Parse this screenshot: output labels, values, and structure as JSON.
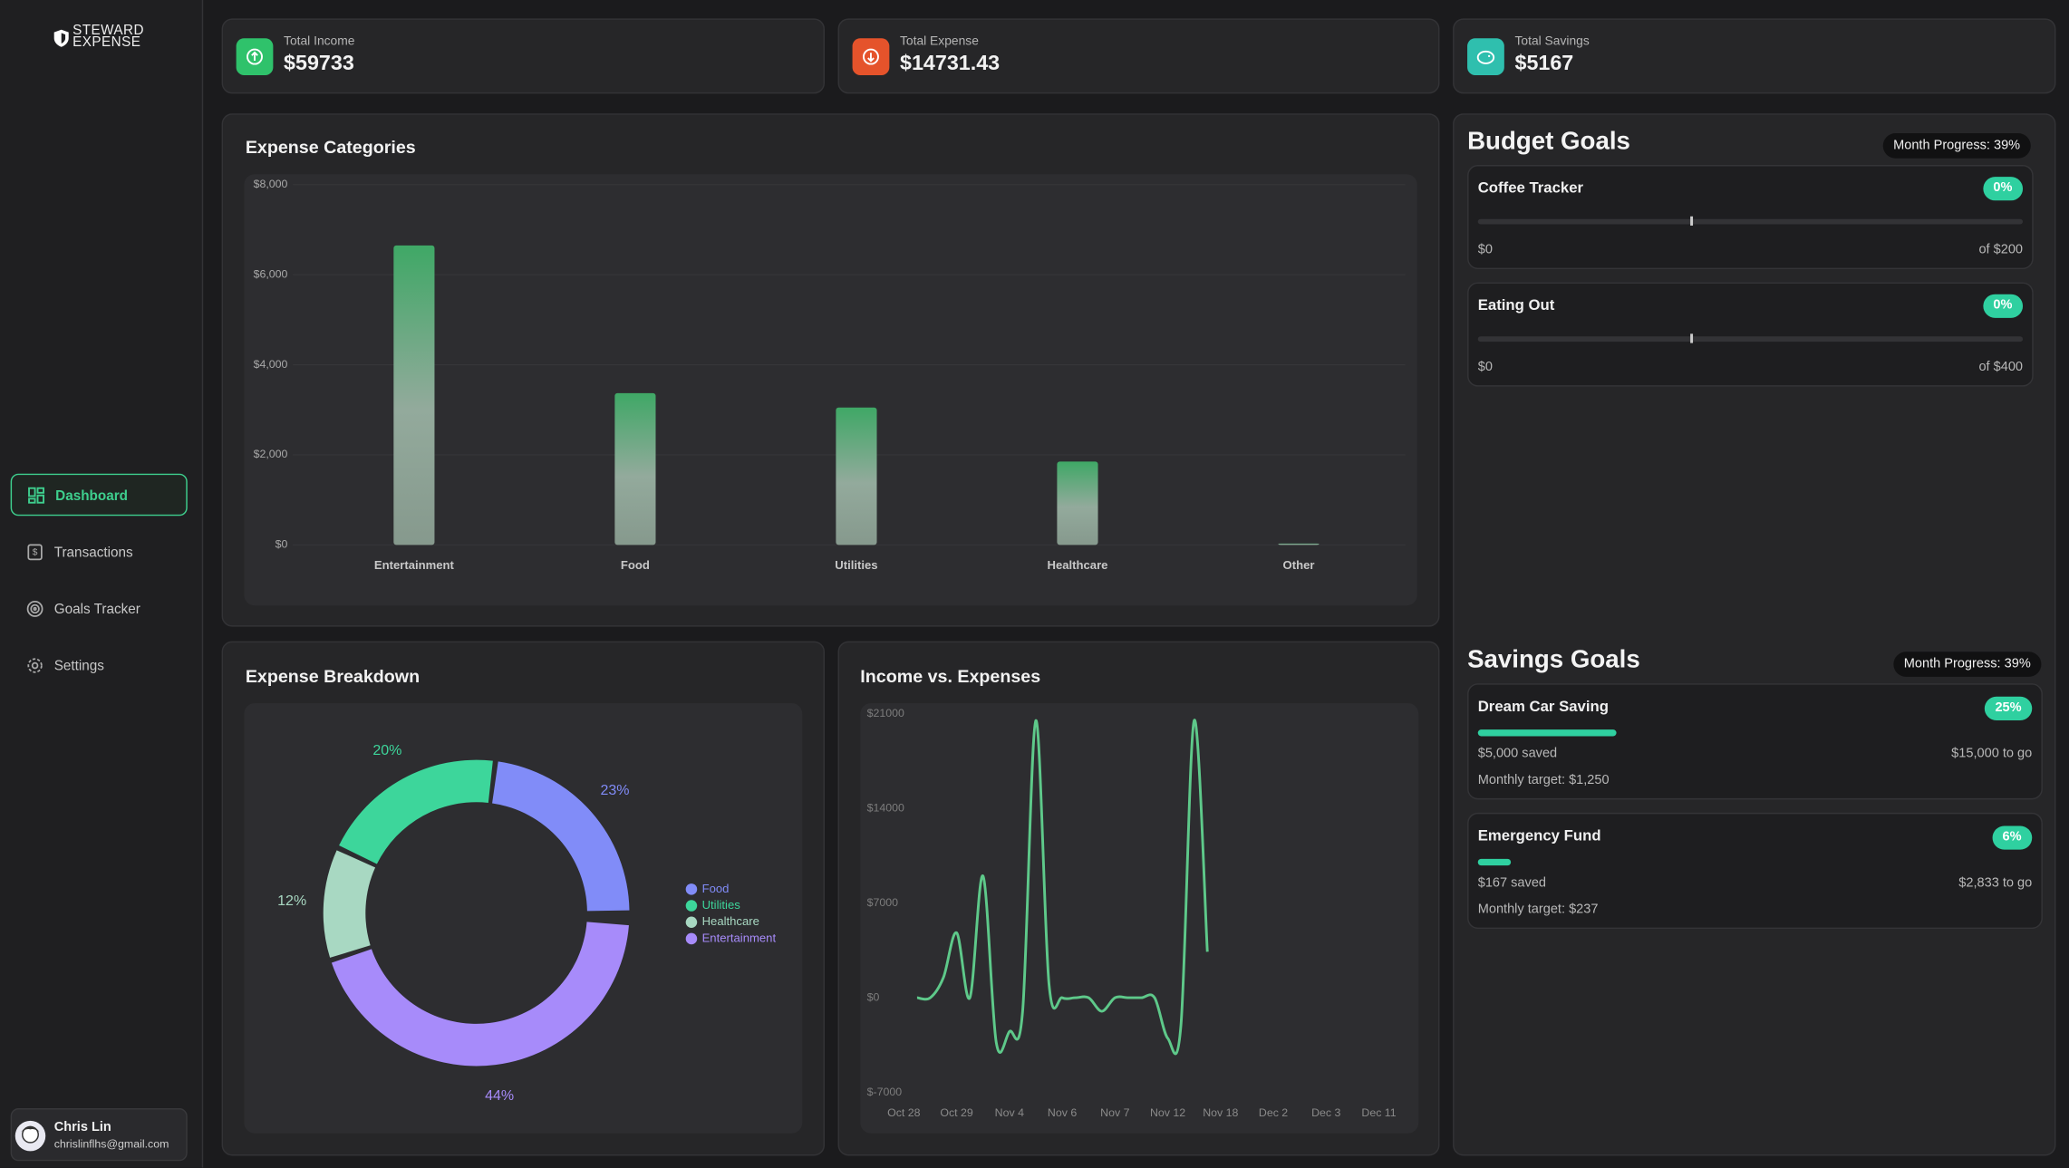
{
  "brand": {
    "line1": "STEWARD",
    "line2": "EXPENSE"
  },
  "nav": [
    {
      "label": "Dashboard"
    },
    {
      "label": "Transactions"
    },
    {
      "label": "Goals Tracker"
    },
    {
      "label": "Settings"
    }
  ],
  "user": {
    "name": "Chris Lin",
    "email": "chrislinflhs@gmail.com"
  },
  "stats": [
    {
      "label": "Total Income",
      "value": "$59733",
      "color": "#2fc26b"
    },
    {
      "label": "Total Expense",
      "value": "$14731.43",
      "color": "#e5532b"
    },
    {
      "label": "Total Savings",
      "value": "$5167",
      "color": "#2fbfae"
    }
  ],
  "expense_categories": {
    "type": "bar",
    "title": "Expense Categories",
    "categories": [
      "Entertainment",
      "Food",
      "Utilities",
      "Healthcare",
      "Other"
    ],
    "values": [
      6650,
      3370,
      3050,
      1850,
      30
    ],
    "color": "#43a86b",
    "ylim": [
      0,
      8000
    ],
    "yticks": [
      {
        "value": 0,
        "label": "$0"
      },
      {
        "value": 2000,
        "label": "$2,000"
      },
      {
        "value": 4000,
        "label": "$4,000"
      },
      {
        "value": 6000,
        "label": "$6,000"
      },
      {
        "value": 8000,
        "label": "$8,000"
      }
    ],
    "grid": true
  },
  "expense_breakdown": {
    "type": "pie",
    "title": "Expense Breakdown",
    "categories": [
      "Food",
      "Utilities",
      "Healthcare",
      "Entertainment"
    ],
    "values": [
      23,
      20,
      12,
      44
    ],
    "value_labels": [
      "23%",
      "20%",
      "12%",
      "44%"
    ],
    "colors": [
      "#818cf8",
      "#3dd69b",
      "#a8d8c2",
      "#a78bfa"
    ]
  },
  "income_vs_expenses": {
    "type": "line",
    "title": "Income vs. Expenses",
    "categories": [
      "Oct 28",
      null,
      null,
      null,
      "Oct 29",
      null,
      null,
      null,
      "Nov 4",
      null,
      null,
      null,
      "Nov 6",
      null,
      null,
      null,
      "Nov 7",
      null,
      null,
      null,
      "Nov 12",
      null,
      null,
      null,
      "Nov 18",
      null,
      null,
      null,
      "Dec 2",
      null,
      null,
      null,
      "Dec 3",
      null,
      null,
      null,
      "Dec 11"
    ],
    "values": [
      null,
      0,
      0,
      1500,
      4800,
      0,
      9000,
      -3300,
      -2500,
      -1000,
      20500,
      1000,
      0,
      0,
      0,
      -1000,
      0,
      0,
      0,
      0,
      -3000,
      -2000,
      20500,
      3400,
      null,
      null,
      null,
      null,
      null,
      null,
      null,
      null,
      null,
      null,
      null,
      null,
      null
    ],
    "color": "#5ec98a",
    "ylim": [
      -7000,
      21000
    ],
    "yticks": [
      {
        "value": -7000,
        "label": "$-7000"
      },
      {
        "value": 0,
        "label": "$0"
      },
      {
        "value": 7000,
        "label": "$7000"
      },
      {
        "value": 14000,
        "label": "$14000"
      },
      {
        "value": 21000,
        "label": "$21000"
      }
    ]
  },
  "budget_goals": {
    "title": "Budget Goals",
    "month_progress": 39,
    "month_progress_label": "Month Progress: 39%",
    "items": [
      {
        "name": "Coffee Tracker",
        "percent": 0,
        "percent_label": "0%",
        "spent": "$0",
        "limit": "of $200"
      },
      {
        "name": "Eating Out",
        "percent": 0,
        "percent_label": "0%",
        "spent": "$0",
        "limit": "of $400"
      }
    ]
  },
  "savings_goals": {
    "title": "Savings Goals",
    "month_progress_label": "Month Progress: 39%",
    "items": [
      {
        "name": "Dream Car Saving",
        "percent": 25,
        "percent_label": "25%",
        "saved": "$5,000 saved",
        "to_go": "$15,000 to go",
        "monthly": "Monthly target: $1,250"
      },
      {
        "name": "Emergency Fund",
        "percent": 6,
        "percent_label": "6%",
        "saved": "$167 saved",
        "to_go": "$2,833 to go",
        "monthly": "Monthly target: $237"
      }
    ]
  }
}
